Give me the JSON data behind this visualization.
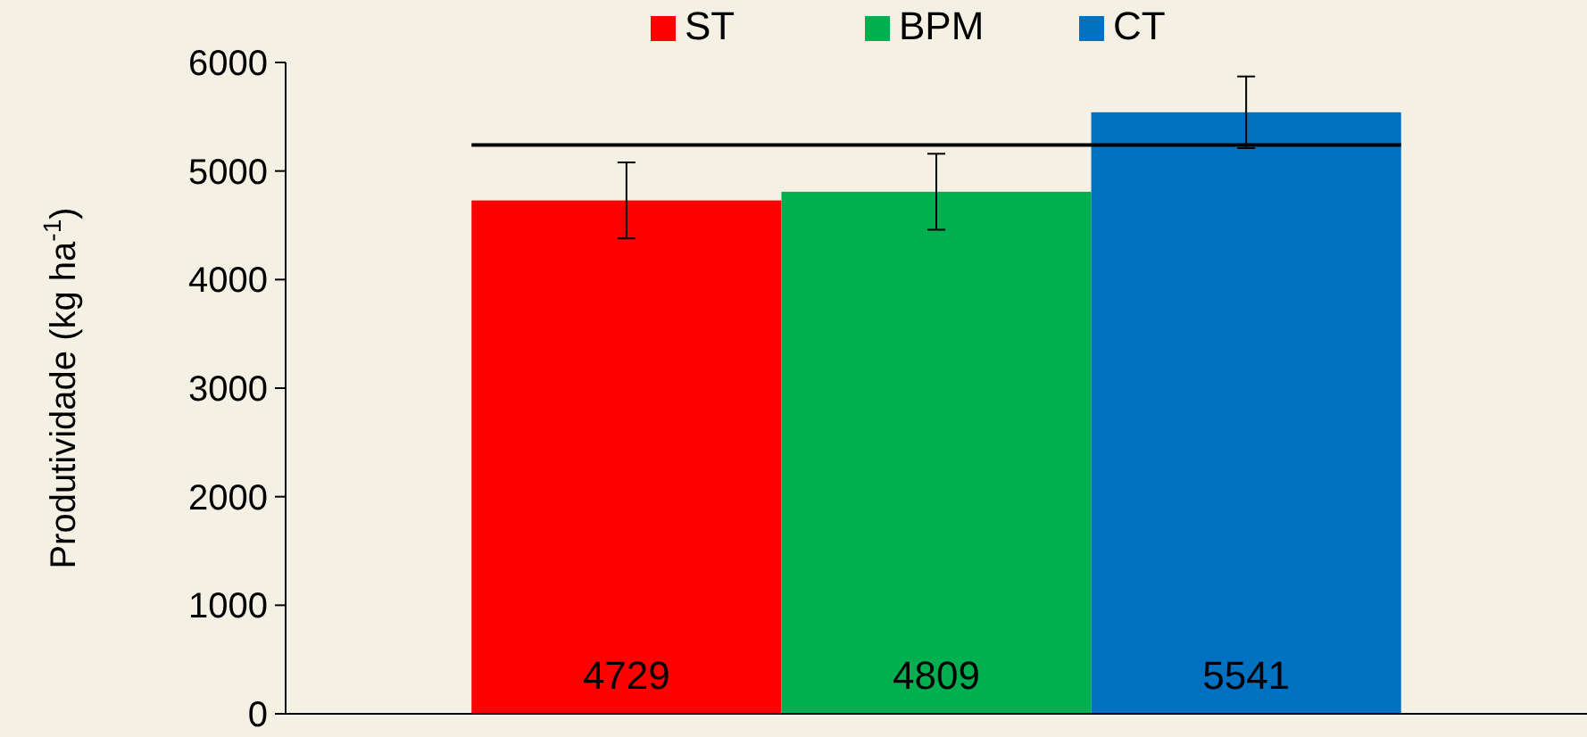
{
  "chart_data": {
    "type": "bar",
    "ylabel": "Produtividade (kg ha$^{-1}$)",
    "categories": [
      null
    ],
    "series": [
      {
        "name": "ST",
        "color": "#ff0000",
        "values": [
          4729
        ],
        "errors": [
          350
        ]
      },
      {
        "name": "BPM",
        "color": "#00b050",
        "values": [
          4809
        ],
        "errors": [
          350
        ]
      },
      {
        "name": "CT",
        "color": "#0070c0",
        "values": [
          5541
        ],
        "errors": [
          330
        ]
      }
    ],
    "ylim": [
      0,
      6000
    ],
    "yticks": [
      0,
      1000,
      2000,
      3000,
      4000,
      5000,
      6000
    ],
    "ref_lines": [
      {
        "axis": "y",
        "value": 5240,
        "color": "#000000"
      }
    ],
    "data_labels": true,
    "legend": "top",
    "grid": false
  }
}
